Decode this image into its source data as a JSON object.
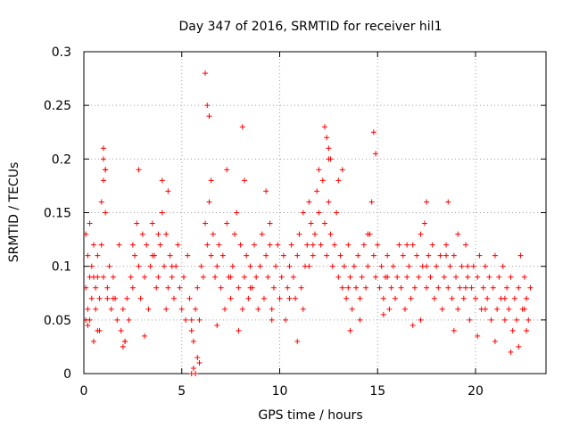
{
  "chart_data": {
    "type": "scatter",
    "title": "Day 347 of 2016, SRMTID for receiver hil1",
    "xlabel": "GPS time / hours",
    "ylabel": "SRMTID / TECUs",
    "xlim": [
      0,
      23.6
    ],
    "ylim": [
      0,
      0.3
    ],
    "x_ticks": [
      0,
      5,
      10,
      15,
      20
    ],
    "x_tick_labels": [
      "0",
      "5",
      "10",
      "15",
      "20"
    ],
    "y_ticks": [
      0,
      0.05,
      0.1,
      0.15,
      0.2,
      0.25,
      0.3
    ],
    "y_tick_labels": [
      "0",
      "0.05",
      "0.1",
      "0.15",
      "0.2",
      "0.25",
      "0.3"
    ],
    "grid": true,
    "legend": "none",
    "marker": "plus",
    "color": "#ff0000",
    "x": [
      0.1,
      0.1,
      0.1,
      0.2,
      0.2,
      0.3,
      0.3,
      0.3,
      0.4,
      0.4,
      0.5,
      0.5,
      0.6,
      0.6,
      0.7,
      0.7,
      0.8,
      0.8,
      0.9,
      0.9,
      1.0,
      1.0,
      1.0,
      1.1,
      1.1,
      1.2,
      1.2,
      1.3,
      1.4,
      1.5,
      1.6,
      1.7,
      1.8,
      1.9,
      2.0,
      2.1,
      2.2,
      2.3,
      2.4,
      2.5,
      2.6,
      2.7,
      2.8,
      2.9,
      3.0,
      3.1,
      3.2,
      3.3,
      3.4,
      3.5,
      3.6,
      3.7,
      3.8,
      3.9,
      4.0,
      4.1,
      4.2,
      4.3,
      4.4,
      4.5,
      4.6,
      4.7,
      4.8,
      4.9,
      5.0,
      5.1,
      5.2,
      5.3,
      5.4,
      5.5,
      5.6,
      5.7,
      5.8,
      5.9,
      6.0,
      6.1,
      6.2,
      6.3,
      6.4,
      6.5,
      6.6,
      6.7,
      6.8,
      6.9,
      7.0,
      7.1,
      7.2,
      7.3,
      7.4,
      7.5,
      7.6,
      7.7,
      7.8,
      7.9,
      8.0,
      8.1,
      8.2,
      8.3,
      8.4,
      8.5,
      8.6,
      8.7,
      8.8,
      8.9,
      9.0,
      9.1,
      9.2,
      9.3,
      9.4,
      9.5,
      9.6,
      9.7,
      9.8,
      9.9,
      10.0,
      10.1,
      10.2,
      10.3,
      10.4,
      10.5,
      10.6,
      10.7,
      10.8,
      10.9,
      11.0,
      11.1,
      11.2,
      11.3,
      11.4,
      11.5,
      11.6,
      11.7,
      11.8,
      11.9,
      12.0,
      12.1,
      12.2,
      12.3,
      12.4,
      12.5,
      12.6,
      12.7,
      12.8,
      12.9,
      13.0,
      13.1,
      13.2,
      13.3,
      13.4,
      13.5,
      13.6,
      13.7,
      13.8,
      13.9,
      14.0,
      14.1,
      14.2,
      14.3,
      14.4,
      14.5,
      14.6,
      14.7,
      14.8,
      14.9,
      15.0,
      15.1,
      15.2,
      15.3,
      15.4,
      15.5,
      15.6,
      15.7,
      15.8,
      15.9,
      16.0,
      16.1,
      16.2,
      16.3,
      16.4,
      16.5,
      16.6,
      16.7,
      16.8,
      16.9,
      17.0,
      17.1,
      17.2,
      17.3,
      17.4,
      17.5,
      17.6,
      17.7,
      17.8,
      17.9,
      18.0,
      18.1,
      18.2,
      18.3,
      18.4,
      18.5,
      18.6,
      18.7,
      18.8,
      18.9,
      19.0,
      19.1,
      19.2,
      19.3,
      19.4,
      19.5,
      19.6,
      19.7,
      19.8,
      19.9,
      20.0,
      20.1,
      20.2,
      20.3,
      20.4,
      20.5,
      20.6,
      20.7,
      20.8,
      20.9,
      21.0,
      21.1,
      21.2,
      21.3,
      21.4,
      21.5,
      21.6,
      21.7,
      21.8,
      21.9,
      22.0,
      22.1,
      22.2,
      22.3,
      22.4,
      22.5,
      22.6,
      22.7,
      22.8,
      0.5,
      1.5,
      2.5,
      3.5,
      4.5,
      5.5,
      6.5,
      7.5,
      8.5,
      9.5,
      10.5,
      11.5,
      12.5,
      13.5,
      14.5,
      15.5,
      16.5,
      17.5,
      18.5,
      19.5,
      20.5,
      21.5,
      22.5,
      6.2,
      6.3,
      6.4,
      8.1,
      12.3,
      12.4,
      12.5,
      14.8,
      14.9,
      1.0,
      1.1,
      2.8,
      4.0,
      4.3,
      7.3,
      8.2,
      9.3,
      12.0,
      12.6,
      13.0,
      13.2,
      17.5,
      18.6,
      19.1,
      5.5,
      5.6,
      5.7,
      5.8,
      5.9,
      2.0,
      2.1,
      10.9,
      21.8,
      22.2,
      0.2,
      0.7,
      3.1,
      4.2,
      6.8,
      7.9,
      9.6,
      11.2,
      13.6,
      14.1,
      15.3,
      16.8,
      17.2,
      18.9,
      20.1,
      21.0,
      22.6,
      3.8,
      11.7,
      19.6
    ],
    "y": [
      0.05,
      0.08,
      0.13,
      0.06,
      0.11,
      0.09,
      0.05,
      0.14,
      0.1,
      0.07,
      0.12,
      0.03,
      0.08,
      0.06,
      0.11,
      0.09,
      0.04,
      0.07,
      0.16,
      0.12,
      0.18,
      0.21,
      0.09,
      0.15,
      0.19,
      0.08,
      0.07,
      0.1,
      0.06,
      0.09,
      0.07,
      0.05,
      0.12,
      0.04,
      0.06,
      0.03,
      0.07,
      0.05,
      0.09,
      0.08,
      0.11,
      0.14,
      0.1,
      0.07,
      0.13,
      0.09,
      0.12,
      0.06,
      0.1,
      0.14,
      0.11,
      0.08,
      0.09,
      0.12,
      0.15,
      0.1,
      0.13,
      0.08,
      0.11,
      0.09,
      0.07,
      0.1,
      0.12,
      0.08,
      0.06,
      0.09,
      0.05,
      0.11,
      0.07,
      0.04,
      0.03,
      0.06,
      0.08,
      0.05,
      0.1,
      0.09,
      0.14,
      0.12,
      0.16,
      0.11,
      0.13,
      0.09,
      0.1,
      0.12,
      0.08,
      0.11,
      0.06,
      0.14,
      0.09,
      0.07,
      0.1,
      0.13,
      0.15,
      0.08,
      0.12,
      0.06,
      0.09,
      0.11,
      0.07,
      0.1,
      0.08,
      0.12,
      0.09,
      0.06,
      0.1,
      0.13,
      0.07,
      0.11,
      0.09,
      0.14,
      0.06,
      0.08,
      0.1,
      0.12,
      0.07,
      0.09,
      0.11,
      0.05,
      0.08,
      0.1,
      0.12,
      0.09,
      0.07,
      0.11,
      0.13,
      0.08,
      0.15,
      0.1,
      0.12,
      0.16,
      0.14,
      0.11,
      0.13,
      0.17,
      0.15,
      0.12,
      0.18,
      0.14,
      0.11,
      0.16,
      0.13,
      0.1,
      0.12,
      0.15,
      0.09,
      0.11,
      0.08,
      0.1,
      0.07,
      0.12,
      0.09,
      0.06,
      0.1,
      0.08,
      0.11,
      0.07,
      0.09,
      0.12,
      0.08,
      0.1,
      0.13,
      0.16,
      0.11,
      0.09,
      0.12,
      0.08,
      0.1,
      0.07,
      0.09,
      0.11,
      0.06,
      0.08,
      0.1,
      0.07,
      0.09,
      0.12,
      0.08,
      0.11,
      0.06,
      0.09,
      0.1,
      0.07,
      0.12,
      0.08,
      0.11,
      0.09,
      0.13,
      0.1,
      0.14,
      0.08,
      0.11,
      0.09,
      0.12,
      0.07,
      0.1,
      0.08,
      0.11,
      0.06,
      0.09,
      0.12,
      0.08,
      0.1,
      0.07,
      0.11,
      0.09,
      0.06,
      0.08,
      0.1,
      0.07,
      0.12,
      0.09,
      0.05,
      0.08,
      0.1,
      0.07,
      0.09,
      0.11,
      0.06,
      0.08,
      0.1,
      0.07,
      0.09,
      0.05,
      0.08,
      0.11,
      0.06,
      0.09,
      0.07,
      0.1,
      0.05,
      0.08,
      0.06,
      0.09,
      0.04,
      0.07,
      0.05,
      0.08,
      0.11,
      0.06,
      0.09,
      0.07,
      0.05,
      0.08,
      0.09,
      0.07,
      0.12,
      0.11,
      0.1,
      0.05,
      0.18,
      0.09,
      0.08,
      0.12,
      0.07,
      0.1,
      0.2,
      0.08,
      0.13,
      0.09,
      0.12,
      0.1,
      0.11,
      0.08,
      0.06,
      0.07,
      0.06,
      0.28,
      0.25,
      0.24,
      0.23,
      0.23,
      0.22,
      0.21,
      0.225,
      0.205,
      0.2,
      0.19,
      0.19,
      0.18,
      0.17,
      0.19,
      0.18,
      0.17,
      0.19,
      0.2,
      0.18,
      0.19,
      0.16,
      0.16,
      0.13,
      0.0,
      0.005,
      0.0,
      0.015,
      0.01,
      0.025,
      0.03,
      0.03,
      0.02,
      0.025,
      0.045,
      0.04,
      0.035,
      0.06,
      0.045,
      0.04,
      0.05,
      0.06,
      0.04,
      0.05,
      0.055,
      0.045,
      0.05,
      0.04,
      0.035,
      0.03,
      0.04,
      0.13,
      0.12,
      0.1
    ]
  }
}
